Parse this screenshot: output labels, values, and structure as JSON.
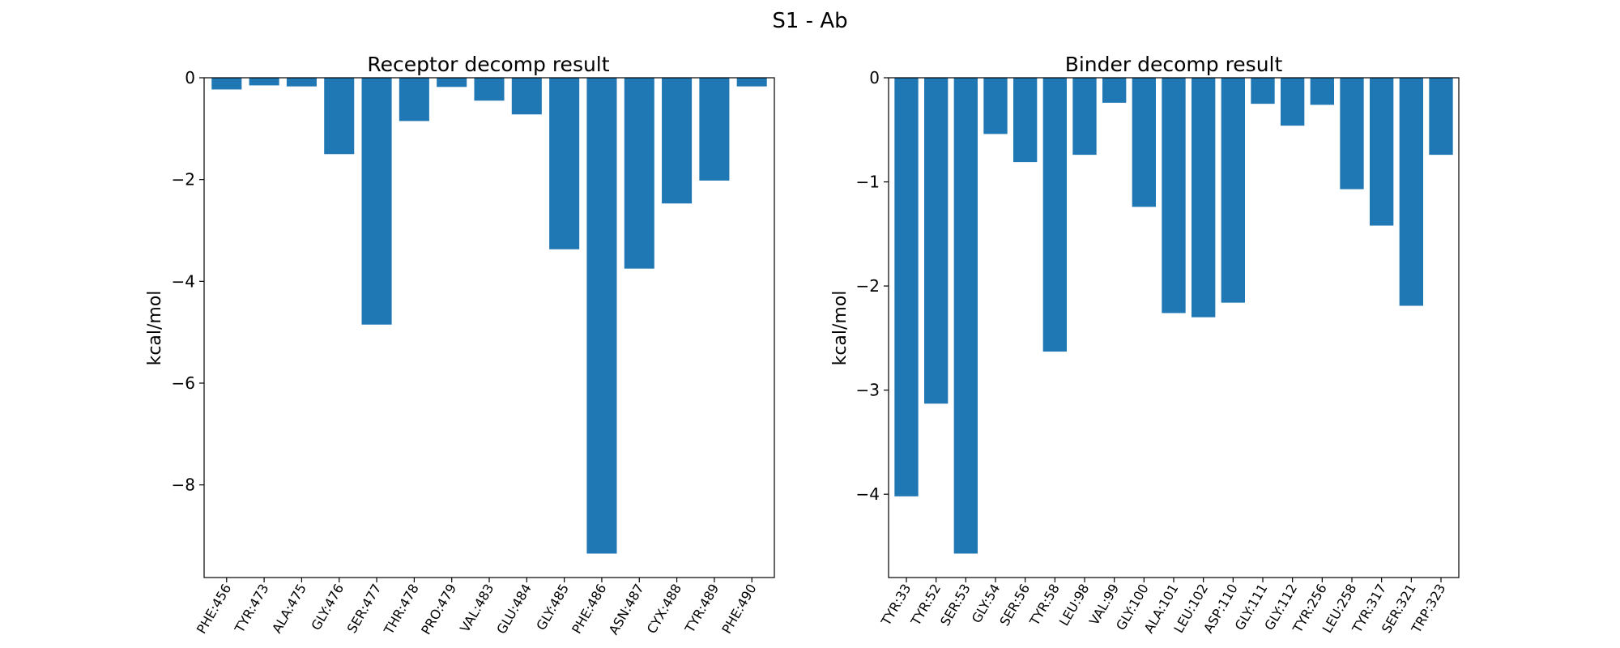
{
  "suptitle": "S1 - Ab",
  "chart_data": [
    {
      "type": "bar",
      "title": "Receptor decomp result",
      "xlabel": "",
      "ylabel": "kcal/mol",
      "categories": [
        "PHE:456",
        "TYR:473",
        "ALA:475",
        "GLY:476",
        "SER:477",
        "THR:478",
        "PRO:479",
        "VAL:483",
        "GLU:484",
        "GLY:485",
        "PHE:486",
        "ASN:487",
        "CYX:488",
        "TYR:489",
        "PHE:490"
      ],
      "values": [
        -0.23,
        -0.15,
        -0.17,
        -1.5,
        -4.85,
        -0.85,
        -0.18,
        -0.45,
        -0.72,
        -3.37,
        -9.35,
        -3.75,
        -2.47,
        -2.02,
        -0.17
      ],
      "ylim": [
        -9.82,
        0
      ],
      "yticks": [
        0,
        -2,
        -4,
        -6,
        -8
      ],
      "ytick_labels": [
        "0",
        "−2",
        "−4",
        "−6",
        "−8"
      ],
      "color": "#1f77b4",
      "grid": false
    },
    {
      "type": "bar",
      "title": "Binder decomp result",
      "xlabel": "",
      "ylabel": "kcal/mol",
      "categories": [
        "TYR:33",
        "TYR:52",
        "SER:53",
        "GLY:54",
        "SER:56",
        "TYR:58",
        "LEU:98",
        "VAL:99",
        "GLY:100",
        "ALA:101",
        "LEU:102",
        "ASP:110",
        "GLY:111",
        "GLY:112",
        "TYR:256",
        "LEU:258",
        "TYR:317",
        "SER:321",
        "TRP:323"
      ],
      "values": [
        -4.02,
        -3.13,
        -4.57,
        -0.54,
        -0.81,
        -2.63,
        -0.74,
        -0.24,
        -1.24,
        -2.26,
        -2.3,
        -2.16,
        -0.25,
        -0.46,
        -0.26,
        -1.07,
        -1.42,
        -2.19,
        -0.74
      ],
      "ylim": [
        -4.8,
        0
      ],
      "yticks": [
        0,
        -1,
        -2,
        -3,
        -4
      ],
      "ytick_labels": [
        "0",
        "−1",
        "−2",
        "−3",
        "−4"
      ],
      "color": "#1f77b4",
      "grid": false
    }
  ]
}
